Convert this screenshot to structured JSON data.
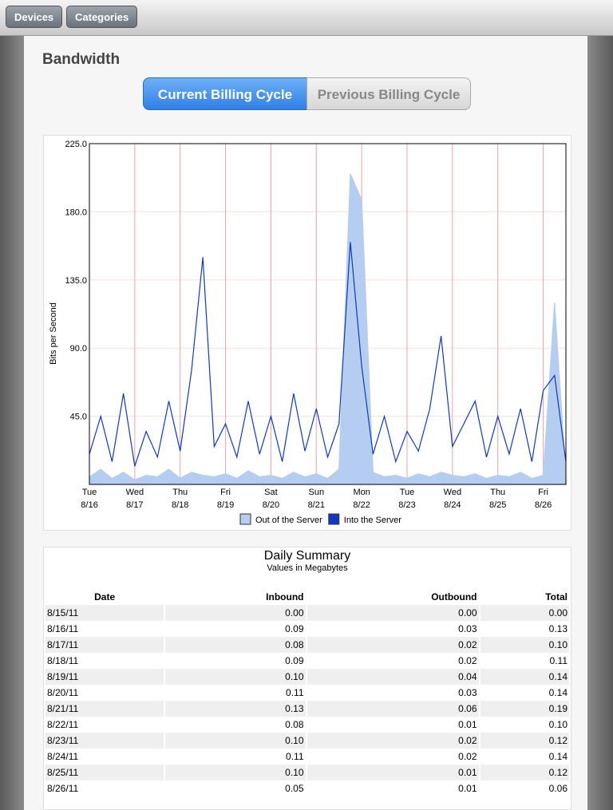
{
  "nav": {
    "buttons": [
      "Devices",
      "Categories"
    ]
  },
  "header": {
    "title": "Bandwidth",
    "segments": [
      "Current Billing Cycle",
      "Previous Billing Cycle"
    ]
  },
  "chart_data": {
    "type": "line",
    "y_label": "Bits per Second",
    "x": [
      0,
      0.25,
      0.5,
      0.75,
      1,
      1.25,
      1.5,
      1.75,
      2,
      2.25,
      2.5,
      2.75,
      3,
      3.25,
      3.5,
      3.75,
      4,
      4.25,
      4.5,
      4.75,
      5,
      5.25,
      5.5,
      5.75,
      6,
      6.25,
      6.5,
      6.75,
      7,
      7.25,
      7.5,
      7.75,
      8,
      8.25,
      8.5,
      8.75,
      9,
      9.25,
      9.5,
      9.75,
      10,
      10.25,
      10.5
    ],
    "series": [
      {
        "name": "Out of the Server",
        "color": "#b4cdf0",
        "fill": true,
        "values": [
          5,
          10,
          4,
          8,
          3,
          6,
          5,
          10,
          4,
          8,
          6,
          5,
          7,
          4,
          9,
          5,
          6,
          4,
          8,
          5,
          7,
          4,
          10,
          205,
          188,
          8,
          5,
          6,
          4,
          7,
          5,
          8,
          6,
          5,
          7,
          4,
          6,
          5,
          8,
          4,
          6,
          120,
          5
        ]
      },
      {
        "name": "Into the Server",
        "color": "#1038c0",
        "fill": false,
        "values": [
          20,
          45,
          15,
          60,
          12,
          35,
          18,
          55,
          22,
          75,
          150,
          25,
          40,
          18,
          55,
          20,
          45,
          15,
          60,
          22,
          50,
          18,
          40,
          160,
          78,
          20,
          45,
          15,
          35,
          22,
          50,
          98,
          25,
          40,
          55,
          18,
          45,
          20,
          50,
          15,
          62,
          72,
          15
        ]
      }
    ],
    "xlim": [
      0,
      10.5
    ],
    "xticks": [
      {
        "value": 0,
        "label": "Tue 8/16"
      },
      {
        "value": 1,
        "label": "Wed 8/17"
      },
      {
        "value": 2,
        "label": "Thu 8/18"
      },
      {
        "value": 3,
        "label": "Fri 8/19"
      },
      {
        "value": 4,
        "label": "Sat 8/20"
      },
      {
        "value": 5,
        "label": "Sun 8/21"
      },
      {
        "value": 6,
        "label": "Mon 8/22"
      },
      {
        "value": 7,
        "label": "Tue 8/23"
      },
      {
        "value": 8,
        "label": "Wed 8/24"
      },
      {
        "value": 9,
        "label": "Thu 8/25"
      },
      {
        "value": 10,
        "label": "Fri 8/26"
      }
    ],
    "ylim": [
      0,
      225
    ],
    "yticks": [
      {
        "value": 45,
        "label": "45.0"
      },
      {
        "value": 90,
        "label": "90.0"
      },
      {
        "value": 135,
        "label": "135.0"
      },
      {
        "value": 180,
        "label": "180.0"
      },
      {
        "value": 225,
        "label": "225.0"
      }
    ],
    "grid": true,
    "grid_color": "#f0a0a8"
  },
  "table": {
    "title": "Daily Summary",
    "subtitle": "Values in Megabytes",
    "columns": [
      "Date",
      "Inbound",
      "Outbound",
      "Total"
    ],
    "rows": [
      [
        "8/15/11",
        "0.00",
        "0.00",
        "0.00"
      ],
      [
        "8/16/11",
        "0.09",
        "0.03",
        "0.13"
      ],
      [
        "8/17/11",
        "0.08",
        "0.02",
        "0.10"
      ],
      [
        "8/18/11",
        "0.09",
        "0.02",
        "0.11"
      ],
      [
        "8/19/11",
        "0.10",
        "0.04",
        "0.14"
      ],
      [
        "8/20/11",
        "0.11",
        "0.03",
        "0.14"
      ],
      [
        "8/21/11",
        "0.13",
        "0.06",
        "0.19"
      ],
      [
        "8/22/11",
        "0.08",
        "0.01",
        "0.10"
      ],
      [
        "8/23/11",
        "0.10",
        "0.02",
        "0.12"
      ],
      [
        "8/24/11",
        "0.11",
        "0.02",
        "0.14"
      ],
      [
        "8/25/11",
        "0.10",
        "0.01",
        "0.12"
      ],
      [
        "8/26/11",
        "0.05",
        "0.01",
        "0.06"
      ]
    ]
  }
}
